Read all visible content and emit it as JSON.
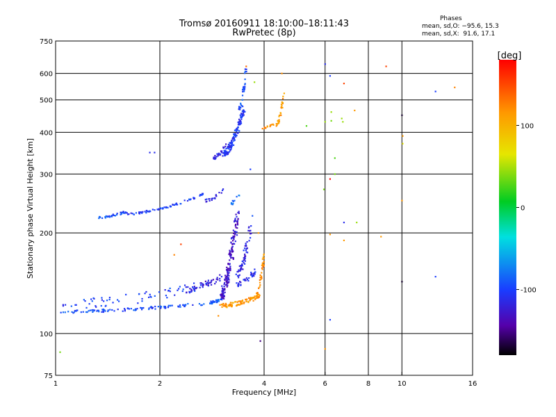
{
  "header": {
    "title_line1": "Tromsø 20160911 18:10:00–18:11:43",
    "title_line2": "RwPretec (8p)",
    "phase_title": "Phases",
    "phase_line1": "mean, sd,O: −95.6, 15.3",
    "phase_line2": "mean, sd,X:  91.6, 17.1"
  },
  "colorbar": {
    "label": "[deg]",
    "ticks": [
      {
        "value": 100,
        "label": "100"
      },
      {
        "value": 0,
        "label": "0"
      },
      {
        "value": -100,
        "label": "-100"
      }
    ],
    "range": [
      -180,
      180
    ]
  },
  "chart_data": {
    "type": "scatter",
    "xlabel": "Frequency [MHz]",
    "ylabel": "Stationary phase Virtual Height [km]",
    "x_scale": "log",
    "y_scale": "log",
    "xlim": [
      1,
      16
    ],
    "ylim": [
      75,
      750
    ],
    "grid": true,
    "x_ticks": [
      1,
      2,
      4,
      6,
      8,
      10,
      16
    ],
    "x_tick_labels": [
      "1",
      "2",
      "4",
      "6",
      "8",
      "10",
      "16"
    ],
    "y_ticks": [
      75,
      100,
      200,
      300,
      400,
      500,
      600,
      750
    ],
    "y_tick_labels": [
      "75",
      "100",
      "200",
      "300",
      "400",
      "500",
      "600",
      "750"
    ],
    "traces": [
      {
        "x_range": [
          1.02,
          2.9
        ],
        "y_range": [
          116,
          124
        ],
        "phase": -95,
        "count": 110,
        "scatter": 0.02
      },
      {
        "x_range": [
          1.05,
          2.8
        ],
        "y_range": [
          122,
          140
        ],
        "phase": -100,
        "count": 70,
        "scatter": 0.07
      },
      {
        "x_range": [
          2.8,
          3.05
        ],
        "y_range": [
          124,
          128
        ],
        "phase": -85,
        "count": 25,
        "scatter": 0.02
      },
      {
        "x_range": [
          2.4,
          3.0
        ],
        "y_range": [
          135,
          148
        ],
        "phase": -120,
        "count": 45,
        "scatter": 0.05
      },
      {
        "x_range": [
          3.0,
          3.35
        ],
        "y_range": [
          130,
          230
        ],
        "phase": -125,
        "count": 170,
        "scatter": 0.06
      },
      {
        "x_range": [
          3.35,
          3.65
        ],
        "y_range": [
          150,
          210
        ],
        "phase": -115,
        "count": 60,
        "scatter": 0.05
      },
      {
        "x_range": [
          3.3,
          3.8
        ],
        "y_range": [
          140,
          155
        ],
        "phase": -110,
        "count": 35,
        "scatter": 0.03
      },
      {
        "x_range": [
          3.0,
          3.9
        ],
        "y_range": [
          121,
          130
        ],
        "phase": 110,
        "count": 90,
        "scatter": 0.03
      },
      {
        "x_range": [
          3.8,
          4.0
        ],
        "y_range": [
          130,
          172
        ],
        "phase": 115,
        "count": 40,
        "scatter": 0.03
      },
      {
        "x_range": [
          1.33,
          1.6
        ],
        "y_range": [
          222,
          232
        ],
        "phase": -95,
        "count": 35,
        "scatter": 0.015
      },
      {
        "x_range": [
          1.6,
          2.7
        ],
        "y_range": [
          228,
          262
        ],
        "phase": -100,
        "count": 80,
        "scatter": 0.015
      },
      {
        "x_range": [
          2.7,
          3.1
        ],
        "y_range": [
          250,
          272
        ],
        "phase": -110,
        "count": 20,
        "scatter": 0.02
      },
      {
        "x_range": [
          3.2,
          3.4
        ],
        "y_range": [
          245,
          265
        ],
        "phase": -85,
        "count": 10,
        "scatter": 0.03
      },
      {
        "x_range": [
          2.85,
          3.1
        ],
        "y_range": [
          335,
          370
        ],
        "phase": -115,
        "count": 25,
        "scatter": 0.03
      },
      {
        "x_range": [
          3.05,
          3.5
        ],
        "y_range": [
          345,
          470
        ],
        "phase": -105,
        "count": 150,
        "scatter": 0.04
      },
      {
        "x_range": [
          3.4,
          3.55
        ],
        "y_range": [
          470,
          630
        ],
        "phase": -95,
        "count": 35,
        "scatter": 0.03
      },
      {
        "x_range": [
          3.95,
          4.3
        ],
        "y_range": [
          412,
          426
        ],
        "phase": 115,
        "count": 15,
        "scatter": 0.01
      },
      {
        "x_range": [
          4.35,
          4.55
        ],
        "y_range": [
          420,
          520
        ],
        "phase": 110,
        "count": 30,
        "scatter": 0.02
      }
    ],
    "outliers": [
      {
        "x": 1.03,
        "y": 88,
        "phase": 30
      },
      {
        "x": 1.87,
        "y": 348,
        "phase": -110
      },
      {
        "x": 1.93,
        "y": 348,
        "phase": -110
      },
      {
        "x": 2.3,
        "y": 185,
        "phase": 150
      },
      {
        "x": 2.2,
        "y": 172,
        "phase": 120
      },
      {
        "x": 3.55,
        "y": 630,
        "phase": 130
      },
      {
        "x": 3.75,
        "y": 565,
        "phase": 40
      },
      {
        "x": 3.65,
        "y": 310,
        "phase": -100
      },
      {
        "x": 3.7,
        "y": 225,
        "phase": -90
      },
      {
        "x": 3.85,
        "y": 200,
        "phase": 110
      },
      {
        "x": 3.9,
        "y": 95,
        "phase": -150
      },
      {
        "x": 2.95,
        "y": 113,
        "phase": 115
      },
      {
        "x": 4.5,
        "y": 600,
        "phase": 115
      },
      {
        "x": 5.3,
        "y": 418,
        "phase": 20
      },
      {
        "x": 6.0,
        "y": 640,
        "phase": -110
      },
      {
        "x": 6.0,
        "y": 430,
        "phase": 40
      },
      {
        "x": 5.95,
        "y": 270,
        "phase": 30
      },
      {
        "x": 6.0,
        "y": 90,
        "phase": 110
      },
      {
        "x": 6.2,
        "y": 590,
        "phase": -100
      },
      {
        "x": 6.25,
        "y": 460,
        "phase": 40
      },
      {
        "x": 6.25,
        "y": 433,
        "phase": 30
      },
      {
        "x": 6.4,
        "y": 335,
        "phase": 20
      },
      {
        "x": 6.4,
        "y": 300,
        "phase": 30
      },
      {
        "x": 6.2,
        "y": 290,
        "phase": 180
      },
      {
        "x": 6.2,
        "y": 198,
        "phase": 110
      },
      {
        "x": 6.2,
        "y": 110,
        "phase": -100
      },
      {
        "x": 6.7,
        "y": 440,
        "phase": 40
      },
      {
        "x": 6.75,
        "y": 430,
        "phase": 40
      },
      {
        "x": 6.8,
        "y": 560,
        "phase": 150
      },
      {
        "x": 6.8,
        "y": 215,
        "phase": -110
      },
      {
        "x": 6.8,
        "y": 190,
        "phase": 110
      },
      {
        "x": 7.3,
        "y": 465,
        "phase": 110
      },
      {
        "x": 7.4,
        "y": 215,
        "phase": 40
      },
      {
        "x": 8.7,
        "y": 195,
        "phase": 110
      },
      {
        "x": 9.0,
        "y": 630,
        "phase": 150
      },
      {
        "x": 10.0,
        "y": 450,
        "phase": -170
      },
      {
        "x": 10.05,
        "y": 390,
        "phase": 110
      },
      {
        "x": 10.05,
        "y": 370,
        "phase": 60
      },
      {
        "x": 10.0,
        "y": 250,
        "phase": 110
      },
      {
        "x": 10.0,
        "y": 143,
        "phase": -170
      },
      {
        "x": 12.5,
        "y": 530,
        "phase": -100
      },
      {
        "x": 12.5,
        "y": 148,
        "phase": -100
      },
      {
        "x": 14.2,
        "y": 545,
        "phase": 120
      }
    ]
  }
}
